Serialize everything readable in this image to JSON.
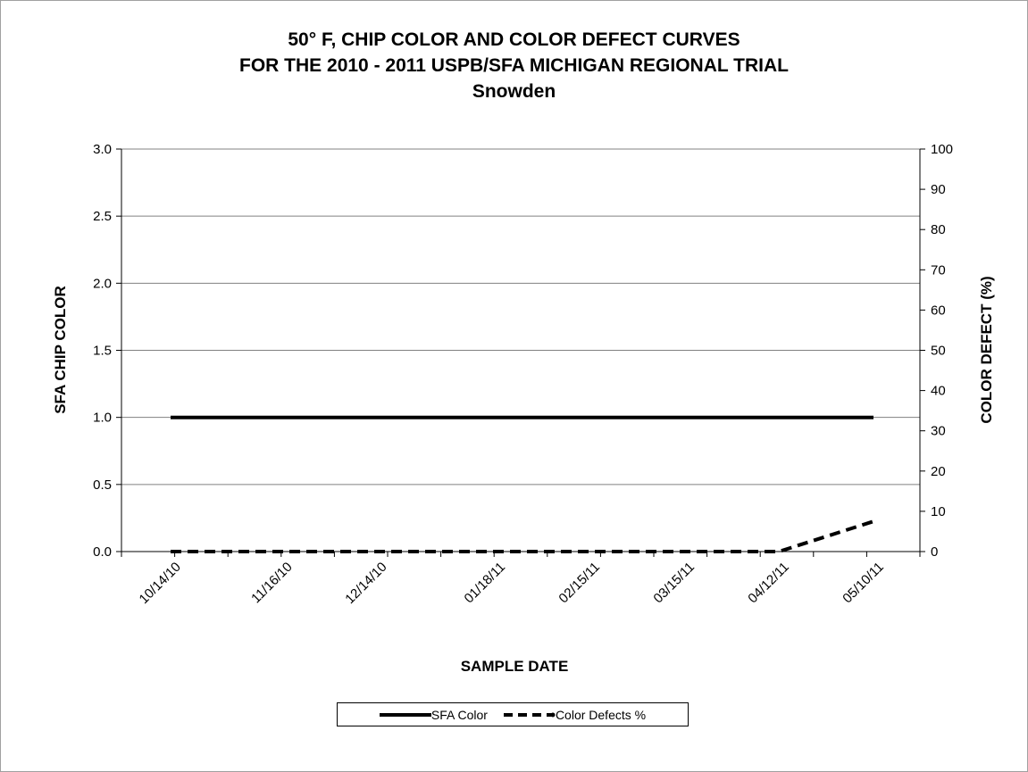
{
  "chart_data": {
    "type": "line",
    "title_lines": [
      "50° F, CHIP COLOR AND COLOR DEFECT CURVES",
      "FOR THE 2010 - 2011 USPB/SFA MICHIGAN REGIONAL TRIAL",
      "Snowden"
    ],
    "xlabel": "SAMPLE DATE",
    "ylabel_left": "SFA CHIP COLOR",
    "ylabel_right": "COLOR DEFECT (%)",
    "x_start": "10/14/10",
    "x_end": "05/10/11",
    "x_tick_labels": [
      "10/14/10",
      "11/16/10",
      "12/14/10",
      "01/18/11",
      "02/15/11",
      "03/15/11",
      "04/12/11",
      "05/10/11"
    ],
    "ylim_left": [
      0,
      3.0
    ],
    "yticks_left": [
      "0.0",
      "0.5",
      "1.0",
      "1.5",
      "2.0",
      "2.5",
      "3.0"
    ],
    "ylim_right": [
      0,
      100
    ],
    "yticks_right": [
      "0",
      "10",
      "20",
      "30",
      "40",
      "50",
      "60",
      "70",
      "80",
      "90",
      "100"
    ],
    "grid": "horizontal",
    "legend_position": "bottom",
    "series": [
      {
        "name": "SFA Color",
        "axis": "left",
        "style": "solid",
        "color": "#000000",
        "points": [
          {
            "x": "10/14/10",
            "y": 1.0
          },
          {
            "x": "11/16/10",
            "y": 1.0
          },
          {
            "x": "12/14/10",
            "y": 1.0
          },
          {
            "x": "01/18/11",
            "y": 1.0
          },
          {
            "x": "02/15/11",
            "y": 1.0
          },
          {
            "x": "03/15/11",
            "y": 1.0
          },
          {
            "x": "04/12/11",
            "y": 1.0
          },
          {
            "x": "05/10/11",
            "y": 1.0
          }
        ]
      },
      {
        "name": "Color Defects %",
        "axis": "right",
        "style": "dashed",
        "color": "#000000",
        "points": [
          {
            "x": "10/14/10",
            "y": 0
          },
          {
            "x": "11/16/10",
            "y": 0
          },
          {
            "x": "12/14/10",
            "y": 0
          },
          {
            "x": "01/18/11",
            "y": 0
          },
          {
            "x": "02/15/11",
            "y": 0
          },
          {
            "x": "03/15/11",
            "y": 0
          },
          {
            "x": "04/12/11",
            "y": 0
          },
          {
            "x": "05/10/11",
            "y": 7.5
          }
        ]
      }
    ]
  }
}
